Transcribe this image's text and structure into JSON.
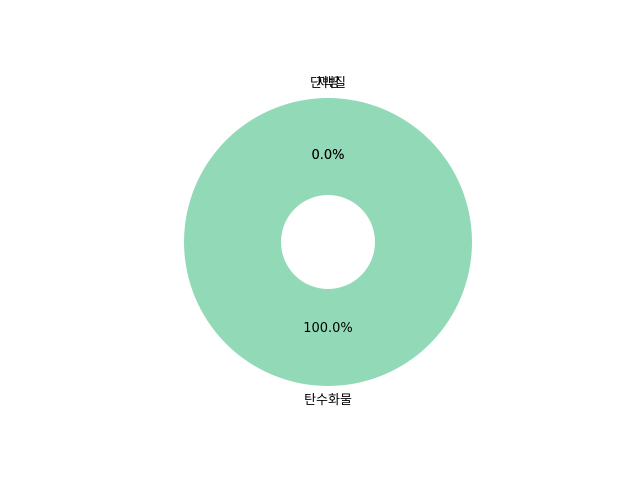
{
  "chart_data": {
    "type": "pie",
    "donut": true,
    "start_angle_deg": 90,
    "slices": [
      {
        "label": "탄수화물",
        "value": 100.0,
        "pct_label": "100.0%",
        "color": "#92d9b7"
      },
      {
        "label": "단백질",
        "value": 0.0,
        "pct_label": "0.0%",
        "color": "#92d9b7"
      },
      {
        "label": "지방",
        "value": 0.0,
        "pct_label": "0.0%",
        "color": "#92d9b7"
      }
    ],
    "legend": false
  }
}
